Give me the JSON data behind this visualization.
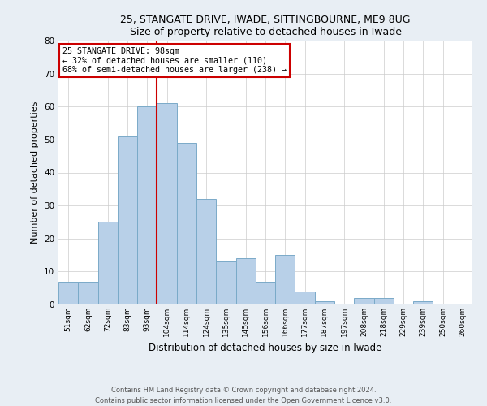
{
  "title1": "25, STANGATE DRIVE, IWADE, SITTINGBOURNE, ME9 8UG",
  "title2": "Size of property relative to detached houses in Iwade",
  "xlabel": "Distribution of detached houses by size in Iwade",
  "ylabel": "Number of detached properties",
  "bin_labels": [
    "51sqm",
    "62sqm",
    "72sqm",
    "83sqm",
    "93sqm",
    "104sqm",
    "114sqm",
    "124sqm",
    "135sqm",
    "145sqm",
    "156sqm",
    "166sqm",
    "177sqm",
    "187sqm",
    "197sqm",
    "208sqm",
    "218sqm",
    "229sqm",
    "239sqm",
    "250sqm",
    "260sqm"
  ],
  "bar_heights": [
    7,
    7,
    25,
    51,
    60,
    61,
    49,
    32,
    13,
    14,
    7,
    15,
    4,
    1,
    0,
    2,
    2,
    0,
    1,
    0,
    0
  ],
  "bar_color": "#b8d0e8",
  "bar_edge_color": "#7aaac8",
  "vline_x": 4.5,
  "vline_color": "#cc0000",
  "annotation_text": "25 STANGATE DRIVE: 98sqm\n← 32% of detached houses are smaller (110)\n68% of semi-detached houses are larger (238) →",
  "annotation_box_color": "#ffffff",
  "annotation_box_edge_color": "#cc0000",
  "ylim": [
    0,
    80
  ],
  "yticks": [
    0,
    10,
    20,
    30,
    40,
    50,
    60,
    70,
    80
  ],
  "footer1": "Contains HM Land Registry data © Crown copyright and database right 2024.",
  "footer2": "Contains public sector information licensed under the Open Government Licence v3.0.",
  "bg_color": "#e8eef4",
  "plot_bg_color": "#ffffff"
}
